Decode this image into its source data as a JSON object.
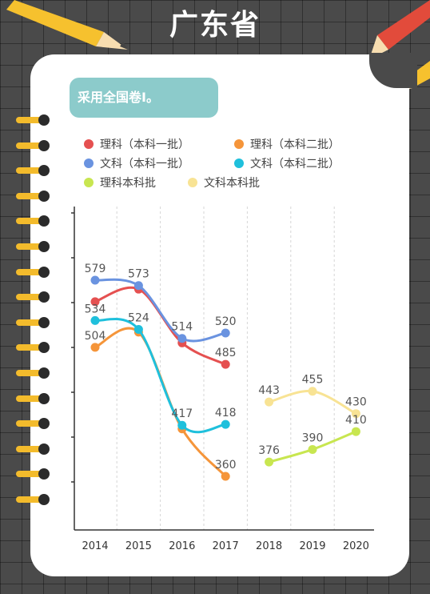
{
  "page": {
    "title": "广东省",
    "tag": "采用全国卷Ⅰ。"
  },
  "colors": {
    "li1": "#e55050",
    "li2": "#f5953a",
    "wen1": "#6a93e0",
    "wen2": "#1fc0dc",
    "likb": "#c8e650",
    "wenkb": "#f8e394"
  },
  "chart_data": {
    "type": "line",
    "categories": [
      "2014",
      "2015",
      "2016",
      "2017",
      "2018",
      "2019",
      "2020"
    ],
    "legend_position": "top",
    "grid": "vertical dashed",
    "series": [
      {
        "name": "理科（本科一批）",
        "color_key": "li1",
        "values": [
          555,
          569,
          509,
          485,
          null,
          null,
          null
        ],
        "labels": [
          null,
          null,
          null,
          "485",
          null,
          null,
          null
        ]
      },
      {
        "name": "理科（本科二批）",
        "color_key": "li2",
        "values": [
          504,
          521,
          413,
          360,
          null,
          null,
          null
        ],
        "labels": [
          "504",
          null,
          null,
          "360",
          null,
          null,
          null
        ]
      },
      {
        "name": "文科（本科一批）",
        "color_key": "wen1",
        "values": [
          579,
          573,
          514,
          520,
          null,
          null,
          null
        ],
        "labels": [
          "579",
          "573",
          "514",
          "520",
          null,
          null,
          null
        ]
      },
      {
        "name": "文科（本科二批）",
        "color_key": "wen2",
        "values": [
          534,
          524,
          417,
          418,
          null,
          null,
          null
        ],
        "labels": [
          "534",
          "524",
          "417",
          "418",
          null,
          null,
          null
        ]
      },
      {
        "name": "理科本科批",
        "color_key": "likb",
        "values": [
          null,
          null,
          null,
          null,
          376,
          390,
          410
        ],
        "labels": [
          null,
          null,
          null,
          null,
          "376",
          "390",
          "410"
        ]
      },
      {
        "name": "文科本科批",
        "color_key": "wenkb",
        "values": [
          null,
          null,
          null,
          null,
          443,
          455,
          430
        ],
        "labels": [
          null,
          null,
          null,
          null,
          "443",
          "455",
          "430"
        ]
      }
    ]
  }
}
